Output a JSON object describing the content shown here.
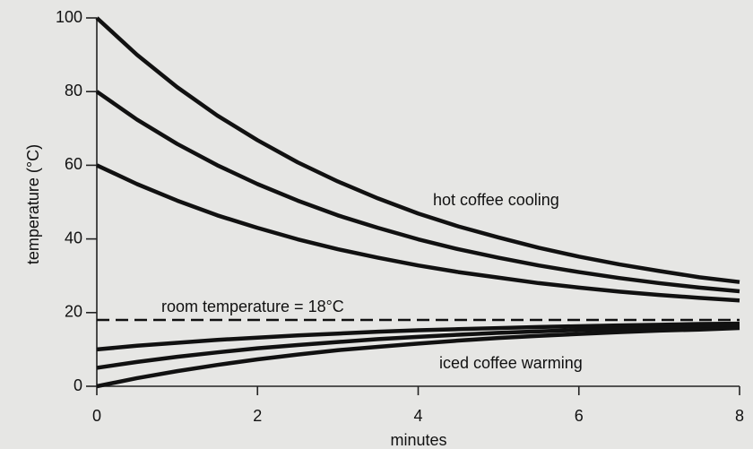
{
  "chart_data": {
    "type": "line",
    "xlabel": "minutes",
    "ylabel": "temperature (°C)",
    "x": [
      0,
      0.5,
      1,
      1.5,
      2,
      2.5,
      3,
      3.5,
      4,
      4.5,
      5,
      5.5,
      6,
      6.5,
      7,
      7.5,
      8
    ],
    "series": [
      {
        "color": "#111111",
        "values": [
          100,
          90.0,
          81.2,
          73.5,
          66.8,
          60.8,
          55.6,
          51.0,
          46.9,
          43.4,
          40.4,
          37.6,
          35.2,
          33.1,
          31.3,
          29.6,
          28.3
        ]
      },
      {
        "color": "#111111",
        "values": [
          80,
          72.4,
          65.8,
          60.0,
          54.9,
          50.4,
          46.4,
          43.0,
          39.9,
          37.2,
          34.9,
          32.8,
          31.0,
          29.4,
          28.0,
          26.8,
          25.8
        ]
      },
      {
        "color": "#111111",
        "values": [
          60,
          54.9,
          50.4,
          46.4,
          43.0,
          39.9,
          37.2,
          34.9,
          32.8,
          31.0,
          29.5,
          28.0,
          26.8,
          25.7,
          24.8,
          24.0,
          23.3
        ]
      },
      {
        "color": "#111111",
        "values": [
          10,
          11.0,
          11.8,
          12.6,
          13.2,
          13.8,
          14.3,
          14.8,
          15.2,
          15.5,
          15.8,
          16.1,
          16.3,
          16.5,
          16.7,
          16.9,
          17.0
        ]
      },
      {
        "color": "#111111",
        "values": [
          5,
          6.6,
          8.0,
          9.2,
          10.3,
          11.2,
          12.0,
          12.8,
          13.4,
          14.0,
          14.5,
          14.9,
          15.3,
          15.6,
          15.9,
          16.2,
          16.4
        ]
      },
      {
        "color": "#111111",
        "values": [
          0,
          2.2,
          4.1,
          5.8,
          7.3,
          8.6,
          9.8,
          10.7,
          11.6,
          12.4,
          13.1,
          13.7,
          14.2,
          14.7,
          15.1,
          15.4,
          15.8
        ]
      }
    ],
    "reference_line": {
      "value": 18,
      "label": "room temperature = 18°C"
    },
    "annotations": [
      "hot coffee cooling",
      "iced coffee warming"
    ],
    "xlim": [
      0,
      8
    ],
    "ylim": [
      0,
      100
    ],
    "xticks": [
      0,
      2,
      4,
      6,
      8
    ],
    "yticks": [
      0,
      20,
      40,
      60,
      80,
      100
    ]
  }
}
